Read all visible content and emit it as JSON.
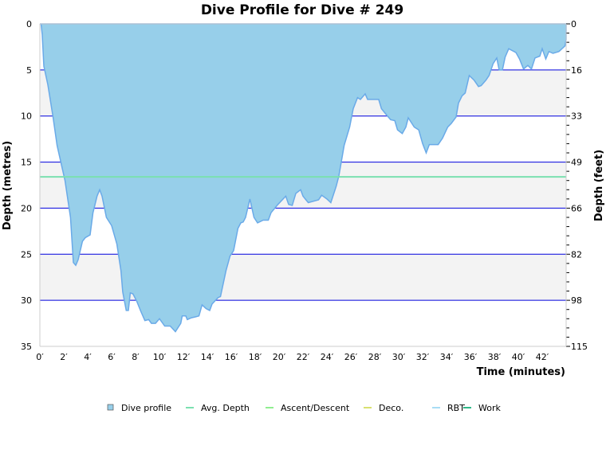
{
  "chart_data": {
    "type": "area",
    "title": "Dive Profile for Dive # 249",
    "xlabel": "Time (minutes)",
    "ylabel": "Depth (metres)",
    "ylabel_right": "Depth (feet)",
    "xlim": [
      0,
      44
    ],
    "ylim": [
      0,
      35
    ],
    "y_inverted": true,
    "x_ticks": [
      0,
      2,
      4,
      6,
      8,
      10,
      12,
      14,
      16,
      18,
      20,
      22,
      24,
      26,
      28,
      30,
      32,
      34,
      36,
      38,
      40,
      42
    ],
    "x_tick_suffix": "′",
    "y_ticks": [
      0,
      5,
      10,
      15,
      20,
      25,
      30,
      35
    ],
    "y_right_tick_labels": [
      "0",
      "16",
      "33",
      "49",
      "66",
      "82",
      "98",
      "115"
    ],
    "grid": true,
    "legend_placement": "bottom",
    "avg_depth": 16.6,
    "colors": {
      "fill": "#97cfea",
      "line": "#6aaae8",
      "grid": "#0000dd",
      "band": "#f3f3f3",
      "avg": "#7be0b0",
      "ascent": "#90ee90",
      "deco": "#d8e070",
      "rbt": "#a8ddf5",
      "work": "#2fb888"
    },
    "legend": [
      {
        "label": "Dive profile",
        "kind": "box",
        "color": "#97cfea"
      },
      {
        "label": "Avg. Depth",
        "kind": "line",
        "color": "#7be0b0"
      },
      {
        "label": "Ascent/Descent",
        "kind": "line",
        "color": "#90ee90"
      },
      {
        "label": "Deco.",
        "kind": "line",
        "color": "#d8e070"
      },
      {
        "label": "RBT",
        "kind": "line",
        "color": "#a8ddf5"
      },
      {
        "label": "Work",
        "kind": "line",
        "color": "#2fb888"
      }
    ],
    "series": [
      {
        "x": [
          0,
          0.1,
          0.2,
          0.33,
          0.67,
          1.1,
          1.44,
          2.1,
          2.56,
          2.8,
          3.0,
          3.2,
          3.56,
          3.8,
          4.2,
          4.44,
          4.78,
          5.0,
          5.2,
          5.56,
          6.0,
          6.44,
          6.78,
          6.93,
          7.22,
          7.4,
          7.56,
          7.78,
          8.1,
          8.44,
          8.78,
          9.1,
          9.33,
          9.67,
          10,
          10.44,
          10.9,
          11.33,
          11.78,
          11.9,
          12.2,
          12.33,
          12.67,
          13,
          13.3,
          13.56,
          13.9,
          14.2,
          14.4,
          14.9,
          15.1,
          15.56,
          15.9,
          16.2,
          16.56,
          16.8,
          17,
          17.2,
          17.56,
          17.9,
          18.2,
          18.67,
          19.1,
          19.33,
          19.9,
          20.56,
          20.8,
          21.1,
          21.4,
          21.8,
          22,
          22.44,
          23.3,
          23.56,
          24,
          24.33,
          24.78,
          25,
          25.44,
          25.9,
          26.2,
          26.56,
          26.8,
          27.2,
          27.4,
          28.33,
          28.56,
          29,
          29.33,
          29.67,
          29.9,
          30.3,
          30.6,
          30.8,
          31.3,
          31.67,
          32,
          32.3,
          32.56,
          33.3,
          33.67,
          34.1,
          34.4,
          34.8,
          35,
          35.3,
          35.56,
          35.9,
          36.3,
          36.67,
          36.9,
          37.3,
          37.56,
          37.9,
          38.2,
          38.4,
          38.67,
          38.9,
          39.2,
          39.8,
          40.1,
          40.44,
          40.8,
          41.1,
          41.4,
          41.8,
          42,
          42.3,
          42.56,
          42.9,
          43.4,
          43.9,
          44,
          44
        ],
        "y": [
          0,
          0,
          1.2,
          4.6,
          6.6,
          10.1,
          13.2,
          17,
          21,
          25.9,
          26.2,
          25.6,
          23.6,
          23.2,
          22.9,
          20.5,
          18.7,
          18,
          18.7,
          21,
          21.9,
          23.9,
          26.8,
          29.1,
          31.1,
          31.1,
          29.2,
          29.3,
          30.1,
          31.2,
          32.2,
          32.1,
          32.5,
          32.5,
          32,
          32.8,
          32.8,
          33.4,
          32.5,
          31.7,
          31.7,
          32.1,
          31.9,
          31.8,
          31.7,
          30.5,
          30.9,
          31.1,
          30.4,
          29.7,
          29.6,
          26.8,
          25.2,
          24.6,
          22.2,
          21.6,
          21.5,
          21,
          19,
          21,
          21.6,
          21.3,
          21.3,
          20.5,
          19.6,
          18.7,
          19.6,
          19.7,
          18.4,
          18,
          18.7,
          19.4,
          19.1,
          18.6,
          19,
          19.4,
          17.6,
          16.5,
          13.2,
          11.2,
          9.2,
          8.0,
          8.2,
          7.6,
          8.2,
          8.2,
          9.2,
          9.9,
          10.4,
          10.5,
          11.5,
          11.9,
          11.2,
          10.2,
          11.2,
          11.5,
          13,
          14,
          13.1,
          13.1,
          12.4,
          11.2,
          10.8,
          10.1,
          8.6,
          7.8,
          7.5,
          5.6,
          6.1,
          6.8,
          6.7,
          6.1,
          5.6,
          4.3,
          3.7,
          5.0,
          5.0,
          3.6,
          2.7,
          3.1,
          3.8,
          4.9,
          4.5,
          4.9,
          3.7,
          3.5,
          2.7,
          3.8,
          3.0,
          3.2,
          3.0,
          2.4,
          1.7,
          0
        ]
      }
    ]
  }
}
